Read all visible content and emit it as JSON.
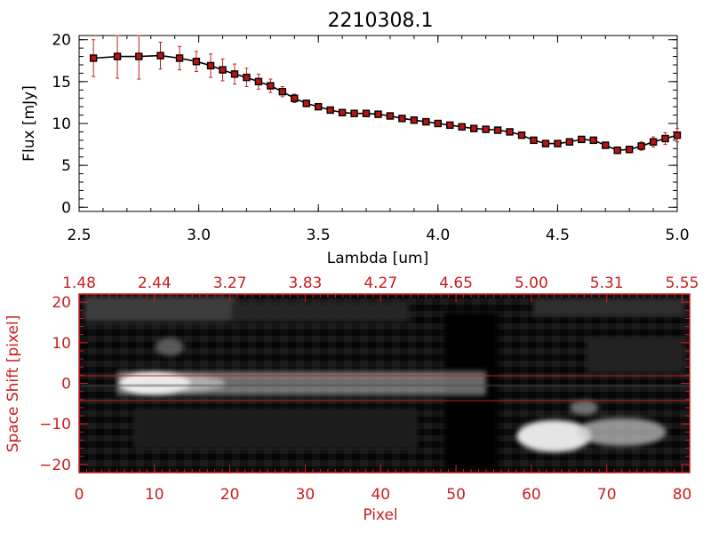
{
  "colors": {
    "axis_black": "#000000",
    "accent_red": "#c81e1e",
    "marker_red": "#b81414"
  },
  "chart_data": [
    {
      "type": "line",
      "title": "2210308.1",
      "xlabel": "Lambda [um]",
      "ylabel": "Flux [mJy]",
      "xlim": [
        2.5,
        5.0
      ],
      "ylim": [
        -0.5,
        20.5
      ],
      "xticks": [
        2.5,
        3.0,
        3.5,
        4.0,
        4.5,
        5.0
      ],
      "xtick_labels": [
        "2.5",
        "3.0",
        "3.5",
        "4.0",
        "4.5",
        "5.0"
      ],
      "yticks": [
        0,
        5,
        10,
        15,
        20
      ],
      "ytick_labels": [
        "0",
        "5",
        "10",
        "15",
        "20"
      ],
      "x": [
        2.56,
        2.66,
        2.75,
        2.84,
        2.92,
        2.99,
        3.05,
        3.1,
        3.15,
        3.2,
        3.25,
        3.3,
        3.35,
        3.4,
        3.45,
        3.5,
        3.55,
        3.6,
        3.65,
        3.7,
        3.75,
        3.8,
        3.85,
        3.9,
        3.95,
        4.0,
        4.05,
        4.1,
        4.15,
        4.2,
        4.25,
        4.3,
        4.35,
        4.4,
        4.45,
        4.5,
        4.55,
        4.6,
        4.65,
        4.7,
        4.75,
        4.8,
        4.85,
        4.9,
        4.95,
        5.0
      ],
      "y": [
        17.8,
        18.0,
        18.0,
        18.1,
        17.8,
        17.4,
        16.9,
        16.4,
        15.9,
        15.5,
        15.0,
        14.5,
        13.8,
        13.0,
        12.4,
        12.0,
        11.6,
        11.3,
        11.2,
        11.2,
        11.1,
        10.9,
        10.6,
        10.4,
        10.2,
        10.0,
        9.8,
        9.6,
        9.4,
        9.3,
        9.2,
        9.0,
        8.6,
        8.0,
        7.6,
        7.6,
        7.8,
        8.1,
        8.0,
        7.4,
        6.8,
        6.9,
        7.3,
        7.8,
        8.2,
        8.6
      ],
      "err": [
        2.2,
        2.6,
        2.7,
        1.6,
        1.4,
        1.2,
        1.4,
        1.3,
        1.2,
        1.1,
        0.9,
        0.8,
        0.6,
        0.5,
        0.4,
        0.3,
        0.3,
        0.3,
        0.3,
        0.3,
        0.3,
        0.3,
        0.3,
        0.3,
        0.3,
        0.3,
        0.3,
        0.3,
        0.3,
        0.3,
        0.3,
        0.3,
        0.3,
        0.3,
        0.3,
        0.3,
        0.3,
        0.3,
        0.3,
        0.3,
        0.4,
        0.4,
        0.5,
        0.6,
        0.7,
        0.8
      ]
    },
    {
      "type": "heatmap",
      "xlabel": "Pixel",
      "ylabel": "Space Shift [pixel]",
      "xlim": [
        0,
        81
      ],
      "ylim": [
        -22,
        22
      ],
      "xticks": [
        0,
        10,
        20,
        30,
        40,
        50,
        60,
        70,
        80
      ],
      "xtick_labels": [
        "0",
        "10",
        "20",
        "30",
        "40",
        "50",
        "60",
        "70",
        "80"
      ],
      "yticks": [
        -20,
        -10,
        0,
        10,
        20
      ],
      "ytick_labels": [
        "−20",
        "−10",
        "0",
        "10",
        "20"
      ],
      "top_axis_labels": [
        "1.48",
        "2.44",
        "3.27",
        "3.83",
        "4.27",
        "4.65",
        "5.00",
        "5.31",
        "5.55"
      ],
      "extraction_window": [
        -3,
        3
      ],
      "sources": [
        {
          "x": 10,
          "y": 0,
          "peak": 1.0,
          "desc": "bright point"
        },
        {
          "x": 30,
          "y": 0,
          "peak": 0.55,
          "desc": "spectral trace"
        },
        {
          "x": 63,
          "y": -13,
          "peak": 0.95,
          "desc": "secondary source"
        }
      ]
    }
  ]
}
